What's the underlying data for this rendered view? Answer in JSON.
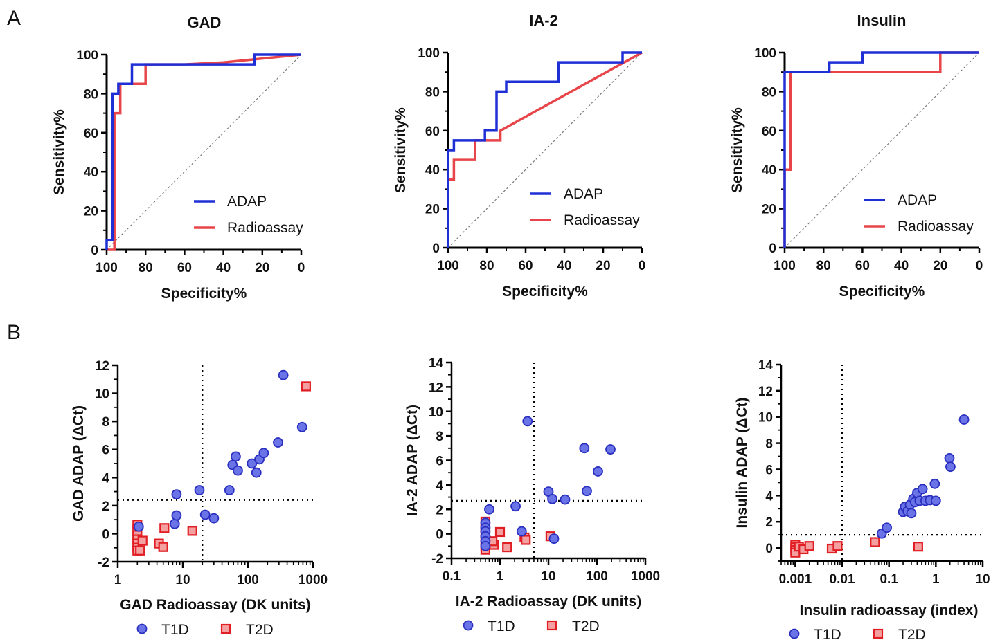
{
  "panel_labels": [
    "A",
    "B"
  ],
  "colors": {
    "adap": "#1f2fd6",
    "radioassay": "#e8454a",
    "t1d_fill": "#6b74e6",
    "t1d_edge": "#2a2fc0",
    "t2d_fill": "#f4a0a0",
    "t2d_edge": "#e01e24"
  },
  "chart_data": [
    {
      "type": "line",
      "panel": "A",
      "title": "GAD",
      "xlabel": "Specificity%",
      "ylabel": "Sensitivity%",
      "xlim": [
        100,
        0
      ],
      "ylim": [
        0,
        100
      ],
      "xticks": [
        "100",
        "80",
        "60",
        "40",
        "20",
        "0"
      ],
      "yticks": [
        "0",
        "20",
        "40",
        "60",
        "80",
        "100"
      ],
      "legend": [
        "ADAP",
        "Radioassay"
      ],
      "legend_position": "bottom-right",
      "reference_diagonal": true,
      "series": [
        {
          "name": "ADAP",
          "points": [
            [
              100,
              0
            ],
            [
              100,
              5
            ],
            [
              97,
              5
            ],
            [
              97,
              80
            ],
            [
              94,
              80
            ],
            [
              94,
              85
            ],
            [
              87,
              85
            ],
            [
              87,
              95
            ],
            [
              24,
              95
            ],
            [
              24,
              100
            ],
            [
              0,
              100
            ]
          ]
        },
        {
          "name": "Radioassay",
          "points": [
            [
              100,
              0
            ],
            [
              96,
              0
            ],
            [
              96,
              70
            ],
            [
              93,
              70
            ],
            [
              93,
              85
            ],
            [
              80,
              85
            ],
            [
              80,
              95
            ],
            [
              60,
              95
            ],
            [
              40,
              96
            ],
            [
              20,
              98
            ],
            [
              0,
              100
            ]
          ]
        }
      ]
    },
    {
      "type": "line",
      "panel": "A",
      "title": "IA-2",
      "xlabel": "Specificity%",
      "ylabel": "Sensitivity%",
      "xlim": [
        100,
        0
      ],
      "ylim": [
        0,
        100
      ],
      "xticks": [
        "100",
        "80",
        "60",
        "40",
        "20",
        "0"
      ],
      "yticks": [
        "0",
        "20",
        "40",
        "60",
        "80",
        "100"
      ],
      "legend": [
        "ADAP",
        "Radioassay"
      ],
      "legend_position": "bottom-right",
      "reference_diagonal": true,
      "series": [
        {
          "name": "ADAP",
          "points": [
            [
              100,
              0
            ],
            [
              100,
              50
            ],
            [
              97,
              50
            ],
            [
              97,
              55
            ],
            [
              81,
              55
            ],
            [
              81,
              60
            ],
            [
              75,
              60
            ],
            [
              75,
              80
            ],
            [
              70,
              80
            ],
            [
              70,
              85
            ],
            [
              57,
              85
            ],
            [
              57,
              85
            ],
            [
              43,
              85
            ],
            [
              43,
              95
            ],
            [
              10,
              95
            ],
            [
              10,
              100
            ],
            [
              0,
              100
            ]
          ]
        },
        {
          "name": "Radioassay",
          "points": [
            [
              100,
              0
            ],
            [
              100,
              35
            ],
            [
              97,
              35
            ],
            [
              97,
              45
            ],
            [
              86,
              45
            ],
            [
              86,
              55
            ],
            [
              73,
              55
            ],
            [
              73,
              60
            ],
            [
              0,
              100
            ]
          ]
        }
      ]
    },
    {
      "type": "line",
      "panel": "A",
      "title": "Insulin",
      "xlabel": "Specificity%",
      "ylabel": "Sensitivity%",
      "xlim": [
        100,
        0
      ],
      "ylim": [
        0,
        100
      ],
      "xticks": [
        "100",
        "80",
        "60",
        "40",
        "20",
        "0"
      ],
      "yticks": [
        "0",
        "20",
        "40",
        "60",
        "80",
        "100"
      ],
      "legend": [
        "ADAP",
        "Radioassay"
      ],
      "legend_position": "bottom-right",
      "reference_diagonal": true,
      "series": [
        {
          "name": "ADAP",
          "points": [
            [
              100,
              0
            ],
            [
              100,
              90
            ],
            [
              77,
              90
            ],
            [
              77,
              95
            ],
            [
              60,
              95
            ],
            [
              60,
              100
            ],
            [
              0,
              100
            ]
          ]
        },
        {
          "name": "Radioassay",
          "points": [
            [
              100,
              0
            ],
            [
              100,
              40
            ],
            [
              97,
              40
            ],
            [
              97,
              90
            ],
            [
              20,
              90
            ],
            [
              20,
              100
            ],
            [
              0,
              100
            ]
          ]
        }
      ]
    },
    {
      "type": "scatter",
      "panel": "B",
      "title": "",
      "xlabel": "GAD  Radioassay (DK units)",
      "ylabel": "GAD ADAP (ΔCt)",
      "xscale": "log",
      "xlim": [
        1,
        1000
      ],
      "ylim": [
        -2,
        12
      ],
      "xticks": [
        "1",
        "10",
        "100",
        "1000"
      ],
      "yticks": [
        "-2",
        "0",
        "2",
        "4",
        "6",
        "8",
        "10",
        "12"
      ],
      "xthreshold": 20,
      "ythreshold": 2.4,
      "legend": [
        "T1D",
        "T2D"
      ],
      "legend_position": "bottom",
      "series": [
        {
          "name": "T1D",
          "points": [
            [
              2.1,
              0.5
            ],
            [
              7.5,
              0.7
            ],
            [
              8,
              1.3
            ],
            [
              8,
              2.8
            ],
            [
              18,
              3.1
            ],
            [
              22,
              1.35
            ],
            [
              30,
              1.1
            ],
            [
              52,
              3.1
            ],
            [
              58,
              4.9
            ],
            [
              65,
              5.5
            ],
            [
              70,
              4.5
            ],
            [
              115,
              5.0
            ],
            [
              135,
              4.35
            ],
            [
              150,
              5.3
            ],
            [
              175,
              5.75
            ],
            [
              290,
              6.5
            ],
            [
              350,
              11.3
            ],
            [
              680,
              7.6
            ]
          ]
        },
        {
          "name": "T2D",
          "points": [
            [
              2,
              0.65
            ],
            [
              2,
              0.3
            ],
            [
              2,
              -0.1
            ],
            [
              2,
              -0.4
            ],
            [
              2,
              -0.7
            ],
            [
              2,
              -1.0
            ],
            [
              2,
              -1.2
            ],
            [
              2.2,
              -1.2
            ],
            [
              2.4,
              -0.5
            ],
            [
              4.3,
              -0.7
            ],
            [
              5,
              -0.95
            ],
            [
              5.2,
              0.4
            ],
            [
              14,
              0.2
            ],
            [
              780,
              10.5
            ]
          ]
        }
      ]
    },
    {
      "type": "scatter",
      "panel": "B",
      "title": "",
      "xlabel": "IA-2 Radioassay (DK units)",
      "ylabel": "IA-2 ADAP (ΔCt)",
      "xscale": "log",
      "xlim": [
        0.1,
        1000
      ],
      "ylim": [
        -2,
        14
      ],
      "xticks": [
        "0.1",
        "1",
        "10",
        "100",
        "1000"
      ],
      "yticks": [
        "-2",
        "0",
        "2",
        "4",
        "6",
        "8",
        "10",
        "12",
        "14"
      ],
      "xthreshold": 5,
      "ythreshold": 2.7,
      "legend": [
        "T1D",
        "T2D"
      ],
      "legend_position": "bottom",
      "series": [
        {
          "name": "T1D",
          "points": [
            [
              0.5,
              0.9
            ],
            [
              0.5,
              0.5
            ],
            [
              0.5,
              0.2
            ],
            [
              0.5,
              -0.2
            ],
            [
              0.5,
              -0.6
            ],
            [
              0.5,
              -1.0
            ],
            [
              0.6,
              2.0
            ],
            [
              2.1,
              2.25
            ],
            [
              2.8,
              0.2
            ],
            [
              3.7,
              9.2
            ],
            [
              10,
              3.45
            ],
            [
              12,
              2.85
            ],
            [
              13,
              -0.4
            ],
            [
              22,
              2.8
            ],
            [
              55,
              7.0
            ],
            [
              62,
              3.5
            ],
            [
              105,
              5.1
            ],
            [
              190,
              6.9
            ]
          ]
        },
        {
          "name": "T2D",
          "points": [
            [
              0.5,
              1.0
            ],
            [
              0.5,
              0.5
            ],
            [
              0.5,
              0
            ],
            [
              0.5,
              -0.5
            ],
            [
              0.5,
              -1.0
            ],
            [
              0.5,
              -1.3
            ],
            [
              0.75,
              -0.9
            ],
            [
              0.7,
              -0.6
            ],
            [
              1.0,
              0.15
            ],
            [
              1.4,
              -1.1
            ],
            [
              3.2,
              -0.3
            ],
            [
              3.4,
              -0.5
            ],
            [
              11,
              -0.2
            ]
          ]
        }
      ]
    },
    {
      "type": "scatter",
      "panel": "B",
      "title": "",
      "xlabel": "Insulin radioassay (index)",
      "ylabel": "Insulin ADAP (ΔCt)",
      "xscale": "log",
      "xlim": [
        0.0005,
        10
      ],
      "ylim": [
        -1,
        14
      ],
      "xticks": [
        "0.001",
        "0.01",
        "0.1",
        "1",
        "10"
      ],
      "yticks": [
        "0",
        "2",
        "4",
        "6",
        "8",
        "10",
        "12",
        "14"
      ],
      "xthreshold": 0.01,
      "ythreshold": 1.0,
      "legend": [
        "T1D",
        "T2D"
      ],
      "legend_position": "bottom",
      "series": [
        {
          "name": "T1D",
          "points": [
            [
              0.07,
              1.1
            ],
            [
              0.09,
              1.55
            ],
            [
              0.2,
              2.75
            ],
            [
              0.22,
              3.15
            ],
            [
              0.25,
              2.8
            ],
            [
              0.28,
              3.3
            ],
            [
              0.3,
              2.65
            ],
            [
              0.33,
              3.75
            ],
            [
              0.36,
              3.5
            ],
            [
              0.4,
              4.2
            ],
            [
              0.45,
              3.6
            ],
            [
              0.52,
              4.5
            ],
            [
              0.6,
              3.6
            ],
            [
              0.75,
              3.65
            ],
            [
              0.95,
              4.9
            ],
            [
              1.0,
              3.6
            ],
            [
              1.95,
              6.85
            ],
            [
              2.05,
              6.2
            ],
            [
              4.0,
              9.8
            ]
          ]
        },
        {
          "name": "T2D",
          "points": [
            [
              0.001,
              0.25
            ],
            [
              0.001,
              0.05
            ],
            [
              0.001,
              -0.15
            ],
            [
              0.001,
              -0.35
            ],
            [
              0.0012,
              0.1
            ],
            [
              0.0015,
              -0.1
            ],
            [
              0.002,
              0.15
            ],
            [
              0.006,
              -0.05
            ],
            [
              0.008,
              0.15
            ],
            [
              0.05,
              0.45
            ],
            [
              0.42,
              0.1
            ]
          ]
        }
      ]
    }
  ]
}
